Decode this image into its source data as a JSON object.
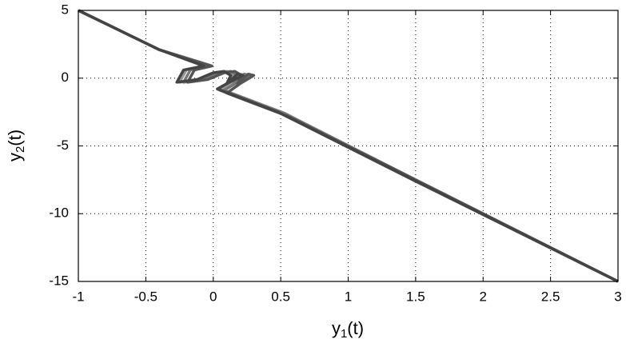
{
  "chart_data": {
    "type": "line",
    "xlabel": [
      "y",
      "1",
      "(t)"
    ],
    "ylabel": [
      "y",
      "2",
      "(t)"
    ],
    "xlim": [
      -1,
      3
    ],
    "ylim": [
      -15,
      5
    ],
    "xticks": [
      -1,
      -0.5,
      0,
      0.5,
      1,
      1.5,
      2,
      2.5,
      3
    ],
    "yticks": [
      -15,
      -10,
      -5,
      0,
      5
    ],
    "grid": true,
    "series": [
      {
        "color": "#999999",
        "x": [
          -1,
          -0.4,
          -0.05,
          -0.2,
          -0.25,
          -0.1,
          0.02,
          0.1,
          0.15,
          0.12,
          0.2,
          0.25,
          0.15,
          0.05,
          0.5,
          1.5,
          3
        ],
        "values": [
          5,
          2.1,
          0.9,
          0.6,
          -0.3,
          -0.1,
          0.4,
          0.5,
          0.2,
          -0.4,
          0.3,
          0.2,
          -0.3,
          -0.9,
          -2.6,
          -7.6,
          -15
        ]
      },
      {
        "color": "#777777",
        "x": [
          -1,
          -0.4,
          -0.03,
          -0.17,
          -0.22,
          -0.07,
          0.05,
          0.13,
          0.18,
          0.15,
          0.23,
          0.28,
          0.18,
          0.08,
          0.53,
          1.52,
          3
        ],
        "values": [
          5,
          2.1,
          0.9,
          0.6,
          -0.3,
          -0.1,
          0.4,
          0.5,
          0.2,
          -0.4,
          0.3,
          0.2,
          -0.3,
          -0.9,
          -2.6,
          -7.6,
          -15
        ]
      },
      {
        "color": "#555555",
        "x": [
          -1,
          -0.4,
          -0.01,
          -0.14,
          -0.19,
          -0.04,
          0.08,
          0.16,
          0.21,
          0.18,
          0.26,
          0.3,
          0.2,
          0.1,
          0.55,
          1.54,
          3
        ],
        "values": [
          5,
          2.1,
          0.9,
          0.6,
          -0.3,
          -0.1,
          0.4,
          0.5,
          0.2,
          -0.4,
          0.3,
          0.2,
          -0.4,
          -1.1,
          -2.8,
          -7.7,
          -15
        ]
      },
      {
        "color": "#444444",
        "x": [
          -1,
          -0.4,
          -0.07,
          -0.22,
          -0.27,
          -0.12,
          0.0,
          0.08,
          0.13,
          0.1,
          0.18,
          0.22,
          0.12,
          0.03,
          0.48,
          1.48,
          3
        ],
        "values": [
          5,
          2.1,
          0.9,
          0.6,
          -0.3,
          -0.1,
          0.4,
          0.5,
          0.2,
          -0.4,
          0.3,
          0.2,
          -0.3,
          -0.8,
          -2.5,
          -7.5,
          -15
        ]
      }
    ]
  }
}
